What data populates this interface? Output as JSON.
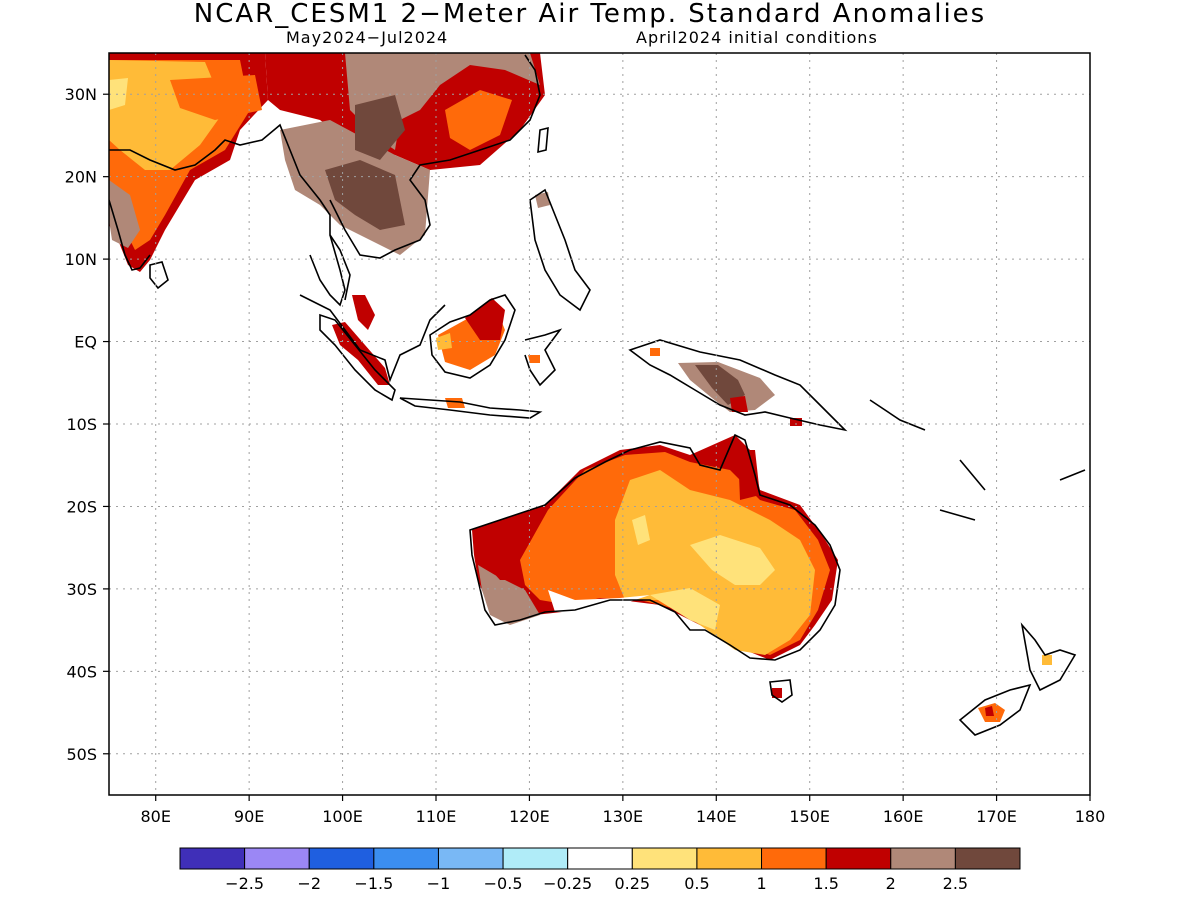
{
  "title": "NCAR_CESM1 2−Meter Air Temp. Standard Anomalies",
  "subtitle_left": "May2024−Jul2024",
  "subtitle_right": "April2024 initial conditions",
  "map": {
    "lon_range": [
      75,
      180
    ],
    "lat_range": [
      -55,
      35
    ],
    "lon_ticks": [
      "80E",
      "90E",
      "100E",
      "110E",
      "120E",
      "130E",
      "140E",
      "150E",
      "160E",
      "170E",
      "180"
    ],
    "lat_ticks": [
      "30N",
      "20N",
      "10N",
      "EQ",
      "10S",
      "20S",
      "30S",
      "40S",
      "50S"
    ],
    "grid": true
  },
  "colorbar": {
    "labels": [
      "−2.5",
      "−2",
      "−1.5",
      "−1",
      "−0.5",
      "−0.25",
      "0.25",
      "0.5",
      "1",
      "1.5",
      "2",
      "2.5"
    ],
    "colors": [
      "#3f2fb8",
      "#9b87f5",
      "#1f5fe0",
      "#3b8ef0",
      "#79b8f5",
      "#b0ecf8",
      "#ffffff",
      "#ffe27a",
      "#ffbb38",
      "#ff6a0a",
      "#c00000",
      "#b08878",
      "#70483c"
    ]
  },
  "anomaly_colors": {
    "light_yellow": "#ffe27a",
    "orange_light": "#ffbb38",
    "orange": "#ff6a0a",
    "red": "#c00000",
    "pink_brown": "#b08878",
    "dark_brown": "#70483c"
  }
}
